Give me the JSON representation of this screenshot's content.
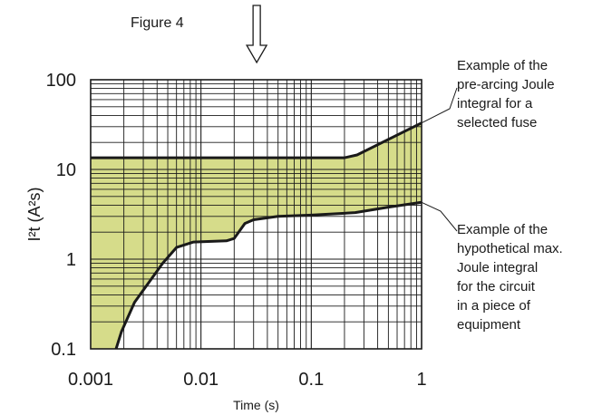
{
  "figure_label": "Figure 4",
  "chart_data": {
    "type": "area",
    "title": "",
    "xlabel": "Time (s)",
    "ylabel": "I²t (A²s)",
    "xscale": "log",
    "yscale": "log",
    "xlim": [
      0.001,
      1
    ],
    "ylim": [
      0.1,
      100
    ],
    "x_tick_labels": [
      "0.001",
      "0.01",
      "0.1",
      "1"
    ],
    "y_tick_labels": [
      "0.1",
      "1",
      "10",
      "100"
    ],
    "grid": true,
    "fill_color": "#d6dc8a",
    "series": [
      {
        "x": [
          0.001,
          0.2,
          0.26,
          1
        ],
        "y": [
          13.5,
          13.5,
          14.5,
          33
        ]
      },
      {
        "x": [
          0.0017,
          0.0019,
          0.0025,
          0.0045,
          0.006,
          0.0085,
          0.017,
          0.02,
          0.025,
          0.03,
          0.05,
          0.1,
          0.25,
          0.5,
          1
        ],
        "y": [
          0.1,
          0.155,
          0.33,
          0.9,
          1.35,
          1.55,
          1.6,
          1.7,
          2.5,
          2.75,
          3,
          3.1,
          3.3,
          3.8,
          4.3
        ]
      }
    ],
    "annotations": [
      {
        "text": "Example of the\npre-arcing Joule\nintegral for a\nselected fuse",
        "target_x": 1,
        "target_y": 33
      },
      {
        "text": "Example of the\nhypothetical max.\nJoule integral\nfor the circuit\nin a piece of\nequipment",
        "target_x": 1,
        "target_y": 4.3
      }
    ],
    "marker": {
      "shape": "down-arrow",
      "at_x": 0.032
    }
  }
}
